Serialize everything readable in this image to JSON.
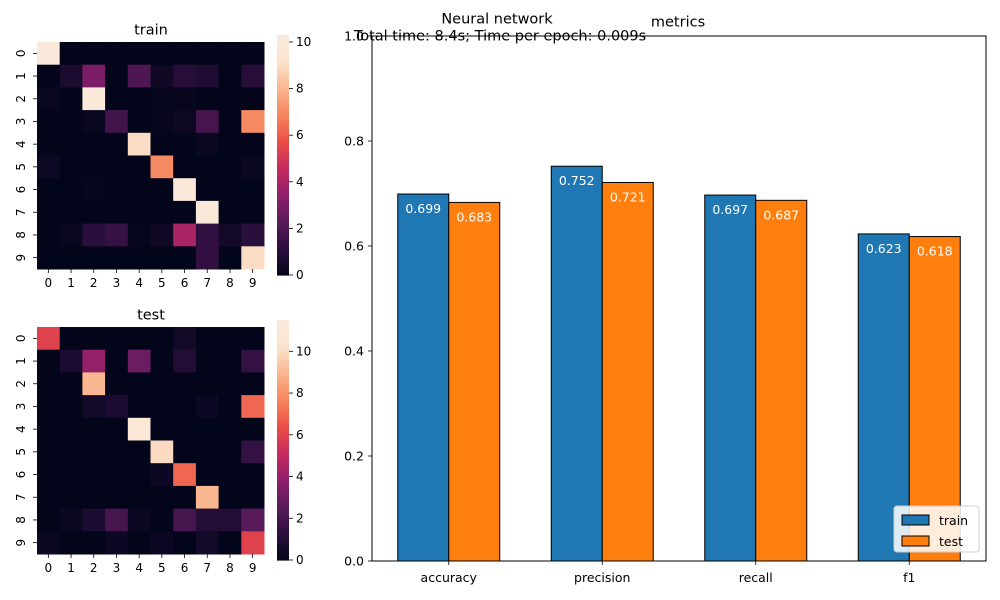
{
  "suptitle": "Neural network",
  "subtitle": "Total time: 8.4s; Time per epoch: 0.009s",
  "colors": {
    "train": "#1f77b4",
    "test": "#ff7f0e",
    "edge": "#000000",
    "colormap": [
      "#03051a",
      "#2b0f3d",
      "#5a1a5b",
      "#8e1f6c",
      "#c42b5d",
      "#ea4d46",
      "#f6845c",
      "#f8b58e",
      "#fbe2cc",
      "#faebdd"
    ]
  },
  "chart_data": [
    {
      "type": "heatmap",
      "title": "train",
      "x_ticks": [
        "0",
        "1",
        "2",
        "3",
        "4",
        "5",
        "6",
        "7",
        "8",
        "9"
      ],
      "y_ticks": [
        "0",
        "1",
        "2",
        "3",
        "4",
        "5",
        "6",
        "7",
        "8",
        "9"
      ],
      "colorbar_ticks": [
        "0",
        "2",
        "4",
        "6",
        "8",
        "10"
      ],
      "vmin": 0,
      "vmax": 10.3,
      "values": [
        [
          10,
          0,
          0,
          0,
          0,
          0,
          0,
          0,
          0,
          0
        ],
        [
          0,
          0.7,
          3,
          0,
          2,
          0.4,
          1,
          0.8,
          0,
          1
        ],
        [
          0.2,
          0,
          10,
          0,
          0,
          0.1,
          0.1,
          0,
          0,
          0
        ],
        [
          0,
          0,
          0.2,
          1.7,
          0,
          0.1,
          0.3,
          1.8,
          0,
          7
        ],
        [
          0,
          0,
          0,
          0,
          9,
          0,
          0,
          0.2,
          0,
          0
        ],
        [
          0.3,
          0,
          0,
          0,
          0,
          7,
          0,
          0,
          0,
          0.2
        ],
        [
          0,
          0,
          0.1,
          0,
          0,
          0,
          10,
          0,
          0,
          0
        ],
        [
          0,
          0,
          0,
          0,
          0,
          0,
          0,
          10,
          0,
          0
        ],
        [
          0,
          0.2,
          1.1,
          1.4,
          0.1,
          0.4,
          4,
          1.3,
          0.5,
          1.1
        ],
        [
          0,
          0,
          0,
          0,
          0,
          0,
          0,
          1.3,
          0,
          9
        ]
      ]
    },
    {
      "type": "heatmap",
      "title": "test",
      "x_ticks": [
        "0",
        "1",
        "2",
        "3",
        "4",
        "5",
        "6",
        "7",
        "8",
        "9"
      ],
      "y_ticks": [
        "0",
        "1",
        "2",
        "3",
        "4",
        "5",
        "6",
        "7",
        "8",
        "9"
      ],
      "colorbar_ticks": [
        "0",
        "2",
        "4",
        "6",
        "8",
        "10"
      ],
      "vmin": 0,
      "vmax": 11.5,
      "values": [
        [
          6,
          0,
          0,
          0,
          0,
          0,
          0.5,
          0,
          0,
          0
        ],
        [
          0,
          0.8,
          4,
          0,
          3,
          0,
          1,
          0,
          0,
          1.5
        ],
        [
          0,
          0,
          9,
          0,
          0,
          0,
          0,
          0,
          0,
          0
        ],
        [
          0,
          0,
          0.5,
          0.8,
          0,
          0,
          0,
          0.3,
          0,
          7
        ],
        [
          0,
          0,
          0,
          0,
          11,
          0,
          0,
          0,
          0,
          0
        ],
        [
          0,
          0,
          0,
          0,
          0,
          10,
          0,
          0,
          0,
          1.5
        ],
        [
          0,
          0,
          0,
          0,
          0,
          0.3,
          7,
          0,
          0,
          0
        ],
        [
          0,
          0,
          0,
          0,
          0,
          0,
          0,
          9,
          0,
          0
        ],
        [
          0,
          0.3,
          0.8,
          2,
          0.3,
          0,
          2,
          1,
          1,
          2.5
        ],
        [
          0.3,
          0,
          0,
          0.3,
          0,
          0.3,
          0,
          0.5,
          0,
          6
        ]
      ]
    },
    {
      "type": "bar",
      "title": "metrics",
      "categories": [
        "accuracy",
        "precision",
        "recall",
        "f1"
      ],
      "series": [
        {
          "name": "train",
          "values": [
            0.699,
            0.752,
            0.697,
            0.623
          ],
          "labels": [
            "0.699",
            "0.752",
            "0.697",
            "0.623"
          ]
        },
        {
          "name": "test",
          "values": [
            0.683,
            0.721,
            0.687,
            0.618
          ],
          "labels": [
            "0.683",
            "0.721",
            "0.687",
            "0.618"
          ]
        }
      ],
      "ylim": [
        0,
        1.0
      ],
      "y_ticks": [
        0,
        0.2,
        0.4,
        0.6,
        0.8,
        1.0
      ],
      "y_tick_labels": [
        "0.0",
        "0.2",
        "0.4",
        "0.6",
        "0.8",
        "1.0"
      ],
      "legend_position": "lower right",
      "grid": false
    }
  ]
}
